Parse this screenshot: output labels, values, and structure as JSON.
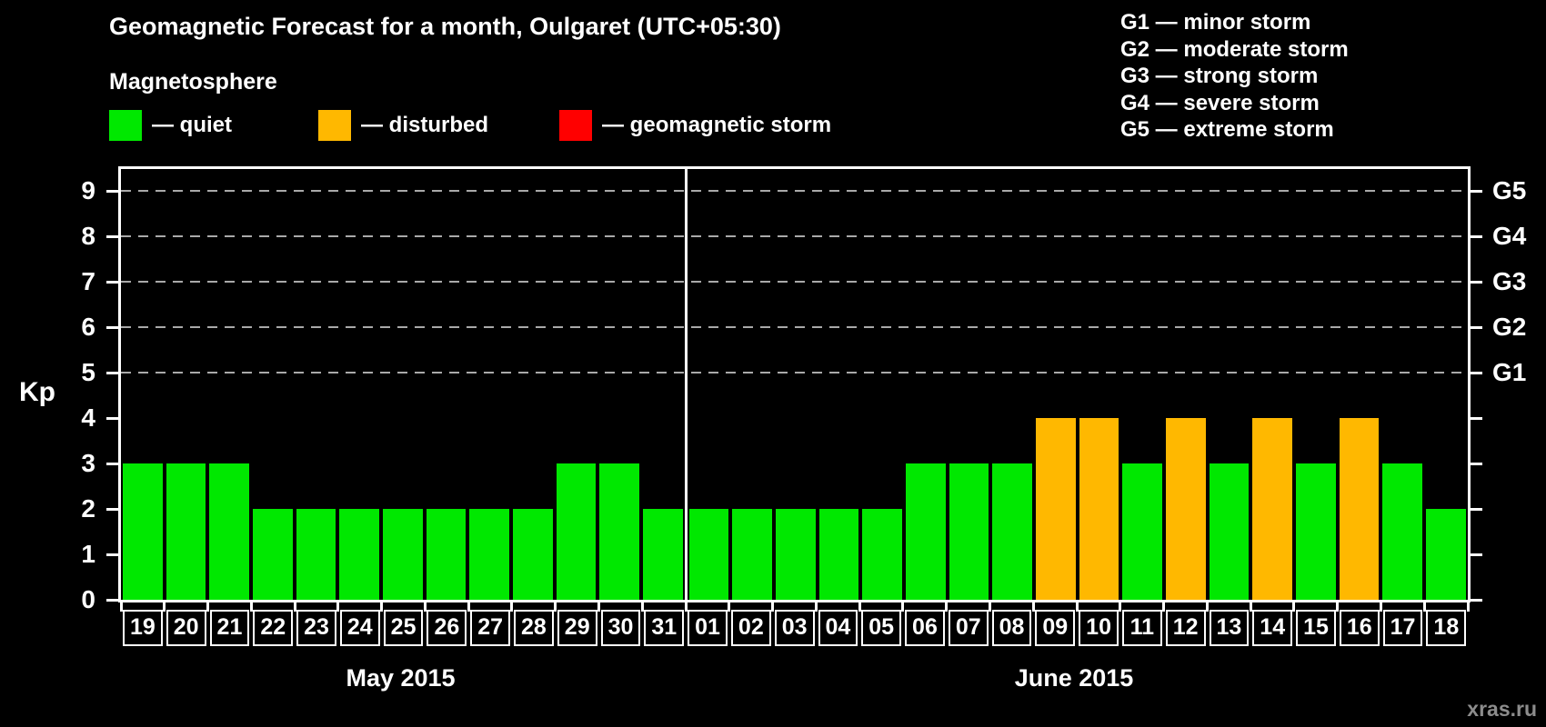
{
  "title": "Geomagnetic Forecast for a month, Oulgaret (UTC+05:30)",
  "magnetosphere": {
    "heading": "Magnetosphere",
    "legend": [
      {
        "key": "quiet",
        "label": "— quiet",
        "color": "#00E800"
      },
      {
        "key": "disturbed",
        "label": "— disturbed",
        "color": "#FFB800"
      },
      {
        "key": "storm",
        "label": "— geomagnetic storm",
        "color": "#FF0000"
      }
    ]
  },
  "g_legend": [
    "G1 — minor storm",
    "G2 — moderate storm",
    "G3 — strong storm",
    "G4 — severe storm",
    "G5 — extreme storm"
  ],
  "watermark": "xras.ru",
  "colors": {
    "background": "#000000",
    "axis": "#FFFFFF",
    "grid": "#A9A9A9",
    "text": "#FFFFFF",
    "watermark": "#8C8C8C",
    "quiet": "#00E800",
    "disturbed": "#FFB800",
    "storm": "#FF0000"
  },
  "chart_data": {
    "type": "bar",
    "title": "Geomagnetic Forecast for a month, Oulgaret (UTC+05:30)",
    "xlabel": "",
    "ylabel": "Kp",
    "ylim": [
      0,
      9.5
    ],
    "yticks": [
      0,
      1,
      2,
      3,
      4,
      5,
      6,
      7,
      8,
      9
    ],
    "grid_values": [
      5,
      6,
      7,
      8,
      9
    ],
    "grid_style": "horizontal dashed gray at Kp 5–9",
    "right_axis": [
      {
        "label": "G1",
        "kp": 5
      },
      {
        "label": "G2",
        "kp": 6
      },
      {
        "label": "G3",
        "kp": 7
      },
      {
        "label": "G4",
        "kp": 8
      },
      {
        "label": "G5",
        "kp": 9
      }
    ],
    "months": [
      {
        "label": "May 2015",
        "days": [
          {
            "day": "19",
            "kp": 3,
            "state": "quiet"
          },
          {
            "day": "20",
            "kp": 3,
            "state": "quiet"
          },
          {
            "day": "21",
            "kp": 3,
            "state": "quiet"
          },
          {
            "day": "22",
            "kp": 2,
            "state": "quiet"
          },
          {
            "day": "23",
            "kp": 2,
            "state": "quiet"
          },
          {
            "day": "24",
            "kp": 2,
            "state": "quiet"
          },
          {
            "day": "25",
            "kp": 2,
            "state": "quiet"
          },
          {
            "day": "26",
            "kp": 2,
            "state": "quiet"
          },
          {
            "day": "27",
            "kp": 2,
            "state": "quiet"
          },
          {
            "day": "28",
            "kp": 2,
            "state": "quiet"
          },
          {
            "day": "29",
            "kp": 3,
            "state": "quiet"
          },
          {
            "day": "30",
            "kp": 3,
            "state": "quiet"
          },
          {
            "day": "31",
            "kp": 2,
            "state": "quiet"
          }
        ]
      },
      {
        "label": "June 2015",
        "days": [
          {
            "day": "01",
            "kp": 2,
            "state": "quiet"
          },
          {
            "day": "02",
            "kp": 2,
            "state": "quiet"
          },
          {
            "day": "03",
            "kp": 2,
            "state": "quiet"
          },
          {
            "day": "04",
            "kp": 2,
            "state": "quiet"
          },
          {
            "day": "05",
            "kp": 2,
            "state": "quiet"
          },
          {
            "day": "06",
            "kp": 3,
            "state": "quiet"
          },
          {
            "day": "07",
            "kp": 3,
            "state": "quiet"
          },
          {
            "day": "08",
            "kp": 3,
            "state": "quiet"
          },
          {
            "day": "09",
            "kp": 4,
            "state": "disturbed"
          },
          {
            "day": "10",
            "kp": 4,
            "state": "disturbed"
          },
          {
            "day": "11",
            "kp": 3,
            "state": "quiet"
          },
          {
            "day": "12",
            "kp": 4,
            "state": "disturbed"
          },
          {
            "day": "13",
            "kp": 3,
            "state": "quiet"
          },
          {
            "day": "14",
            "kp": 4,
            "state": "disturbed"
          },
          {
            "day": "15",
            "kp": 3,
            "state": "quiet"
          },
          {
            "day": "16",
            "kp": 4,
            "state": "disturbed"
          },
          {
            "day": "17",
            "kp": 3,
            "state": "quiet"
          },
          {
            "day": "18",
            "kp": 2,
            "state": "quiet"
          }
        ]
      }
    ]
  }
}
